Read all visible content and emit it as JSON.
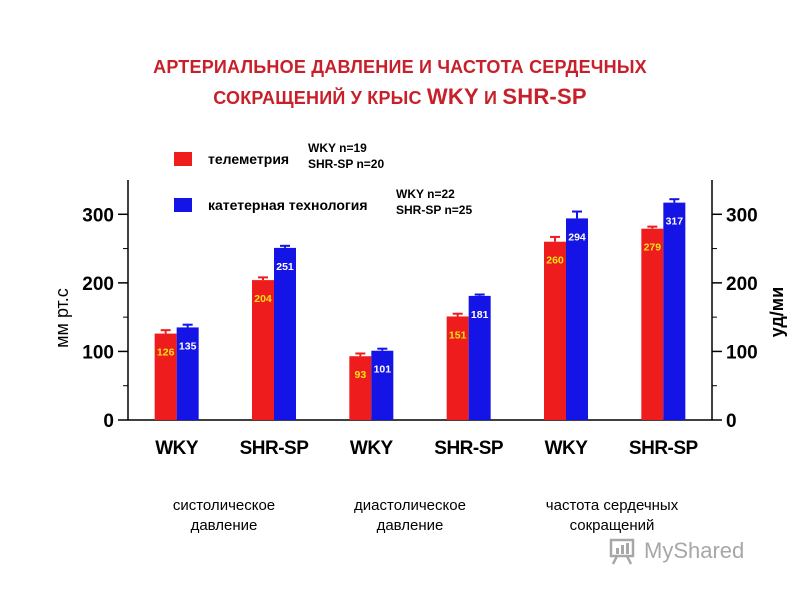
{
  "title": {
    "line1": "АРТЕРИАЛЬНОЕ ДАВЛЕНИЕ И ЧАСТОТА СЕРДЕЧНЫХ",
    "line2_prefix": "СОКРАЩЕНИЙ У КРЫС ",
    "line2_wky": "WKY",
    "line2_and": " И ",
    "line2_shr": "SHR-SP"
  },
  "legend": {
    "telemetry": {
      "label": "телеметрия",
      "n_wky": "WKY n=19",
      "n_shr": "SHR-SP n=20",
      "color": "#ee1c1c"
    },
    "catheter": {
      "label": "катетерная технология",
      "n_wky": "WKY n=22",
      "n_shr": "SHR-SP n=25",
      "color": "#1414e6"
    }
  },
  "groups": [
    {
      "line1": "систолическое",
      "line2": "давление"
    },
    {
      "line1": "диастолическое",
      "line2": "давление"
    },
    {
      "line1": "частота сердечных",
      "line2": "сокращений"
    }
  ],
  "watermark": "MyShared",
  "chart_data": {
    "type": "bar",
    "categories": [
      "WKY",
      "SHR-SP",
      "WKY",
      "SHR-SP",
      "WKY",
      "SHR-SP"
    ],
    "series": [
      {
        "name": "телеметрия",
        "values": [
          126,
          204,
          93,
          151,
          260,
          279
        ],
        "errors": [
          5,
          4,
          4,
          4,
          7,
          3
        ],
        "color": "#ee1c1c"
      },
      {
        "name": "катетерная технология",
        "values": [
          135,
          251,
          101,
          181,
          294,
          317
        ],
        "errors": [
          4,
          3,
          3,
          2,
          10,
          5
        ],
        "color": "#1414e6"
      }
    ],
    "ylabel_left": "мм рт.с",
    "ylabel_right": "уд/ми",
    "ylim": [
      0,
      350
    ],
    "yticks": [
      0,
      100,
      200,
      300
    ],
    "grid": false
  }
}
